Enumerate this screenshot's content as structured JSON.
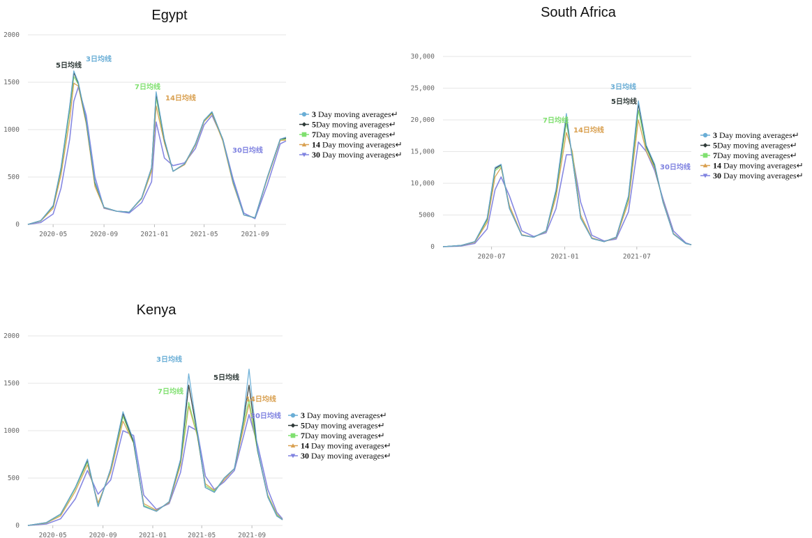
{
  "legend_labels": [
    "Day moving averages",
    "Day moving averages",
    "Day moving averages",
    "Day moving averages",
    "Day moving averages"
  ],
  "windows": [
    "3",
    "5",
    "7",
    "14",
    "30"
  ],
  "colors": {
    "ma3": "#6aaed6",
    "ma5": "#2f3a38",
    "ma7": "#80e070",
    "ma14": "#d9a050",
    "ma30": "#7f82e0",
    "grid": "#e6e6e6"
  },
  "chart_data": [
    {
      "type": "line",
      "title": "Egypt",
      "x_ticks": [
        "2020-05",
        "2020-09",
        "2021-01",
        "2021-05",
        "2021-09"
      ],
      "x_range": [
        "2020-03-01",
        "2021-11-15"
      ],
      "ylim": [
        0,
        2000
      ],
      "y_ticks": [
        "0",
        "500",
        "1000",
        "1500",
        "2000"
      ],
      "grid": "horizontal",
      "legend": "right",
      "x": [
        "2020-03-01",
        "2020-04-01",
        "2020-05-01",
        "2020-05-20",
        "2020-06-10",
        "2020-06-20",
        "2020-07-01",
        "2020-07-20",
        "2020-08-10",
        "2020-09-01",
        "2020-10-01",
        "2020-11-01",
        "2020-12-01",
        "2020-12-25",
        "2021-01-05",
        "2021-01-25",
        "2021-02-15",
        "2021-03-15",
        "2021-04-10",
        "2021-05-01",
        "2021-05-20",
        "2021-06-15",
        "2021-07-10",
        "2021-08-05",
        "2021-09-01",
        "2021-10-01",
        "2021-11-01",
        "2021-11-15"
      ],
      "series": [
        {
          "name": "3",
          "values": [
            0,
            40,
            200,
            600,
            1250,
            1620,
            1500,
            1100,
            450,
            180,
            140,
            130,
            280,
            600,
            1400,
            900,
            560,
            640,
            850,
            1100,
            1190,
            900,
            450,
            100,
            70,
            500,
            900,
            920
          ]
        },
        {
          "name": "5",
          "values": [
            0,
            40,
            195,
            590,
            1240,
            1600,
            1490,
            1090,
            440,
            180,
            140,
            130,
            280,
            600,
            1380,
            890,
            560,
            640,
            850,
            1100,
            1185,
            900,
            450,
            100,
            70,
            500,
            900,
            910
          ]
        },
        {
          "name": "7",
          "values": [
            0,
            38,
            190,
            570,
            1200,
            1560,
            1480,
            1080,
            430,
            180,
            140,
            130,
            275,
            590,
            1340,
            880,
            560,
            640,
            845,
            1095,
            1180,
            895,
            445,
            100,
            70,
            495,
            895,
            900
          ]
        },
        {
          "name": "14",
          "values": [
            0,
            35,
            170,
            520,
            1100,
            1490,
            1460,
            1060,
            400,
            175,
            140,
            130,
            270,
            560,
            1250,
            860,
            560,
            630,
            835,
            1085,
            1170,
            880,
            430,
            100,
            70,
            485,
            885,
            890
          ]
        },
        {
          "name": "30",
          "values": [
            0,
            20,
            110,
            380,
            900,
            1300,
            1450,
            1150,
            500,
            170,
            140,
            120,
            230,
            450,
            1080,
            700,
            620,
            650,
            800,
            1050,
            1150,
            900,
            480,
            120,
            60,
            420,
            850,
            880
          ]
        }
      ],
      "annotations": [
        {
          "text": "5日均线",
          "series": "5"
        },
        {
          "text": "3日均线",
          "series": "3"
        },
        {
          "text": "7日均线",
          "series": "7"
        },
        {
          "text": "14日均线",
          "series": "14"
        },
        {
          "text": "30日均线",
          "series": "30"
        }
      ]
    },
    {
      "type": "line",
      "title": "South Africa",
      "x_ticks": [
        "2020-07",
        "2021-01",
        "2021-07"
      ],
      "x_range": [
        "2020-03-01",
        "2021-11-15"
      ],
      "ylim": [
        0,
        30000
      ],
      "y_ticks": [
        "0",
        "5000",
        "10,000",
        "15,000",
        "20,000",
        "25,000",
        "30,000"
      ],
      "grid": "horizontal",
      "legend": "right",
      "x": [
        "2020-03-01",
        "2020-04-15",
        "2020-05-20",
        "2020-06-20",
        "2020-07-10",
        "2020-07-25",
        "2020-08-15",
        "2020-09-15",
        "2020-10-15",
        "2020-11-15",
        "2020-12-10",
        "2021-01-05",
        "2021-01-20",
        "2021-02-10",
        "2021-03-10",
        "2021-04-10",
        "2021-05-10",
        "2021-06-10",
        "2021-07-05",
        "2021-07-25",
        "2021-08-15",
        "2021-09-05",
        "2021-10-01",
        "2021-11-01",
        "2021-11-15"
      ],
      "series": [
        {
          "name": "3",
          "values": [
            0,
            200,
            800,
            4500,
            12500,
            13000,
            6000,
            1800,
            1500,
            2500,
            9000,
            21000,
            14000,
            4500,
            1300,
            800,
            1500,
            8000,
            23000,
            16000,
            13000,
            7000,
            2000,
            500,
            300
          ]
        },
        {
          "name": "5",
          "values": [
            0,
            200,
            800,
            4400,
            12300,
            12900,
            6000,
            1800,
            1500,
            2500,
            8800,
            20500,
            14000,
            4500,
            1300,
            800,
            1500,
            7900,
            22500,
            15800,
            12800,
            7000,
            2000,
            500,
            300
          ]
        },
        {
          "name": "7",
          "values": [
            0,
            190,
            780,
            4200,
            12000,
            12700,
            6100,
            1800,
            1500,
            2450,
            8500,
            19500,
            14500,
            4600,
            1300,
            800,
            1500,
            7600,
            21500,
            15500,
            12600,
            7000,
            2000,
            500,
            300
          ]
        },
        {
          "name": "14",
          "values": [
            0,
            170,
            700,
            3800,
            11000,
            12500,
            6500,
            1900,
            1500,
            2400,
            7800,
            18000,
            15000,
            5000,
            1400,
            800,
            1400,
            7000,
            20000,
            15000,
            12400,
            7200,
            2100,
            500,
            300
          ]
        },
        {
          "name": "30",
          "values": [
            0,
            100,
            500,
            2800,
            9000,
            11000,
            8000,
            2500,
            1600,
            2200,
            6000,
            14500,
            14500,
            7000,
            1800,
            900,
            1200,
            5500,
            16500,
            15000,
            12000,
            7500,
            2500,
            600,
            300
          ]
        }
      ],
      "annotations": [
        {
          "text": "3日均线",
          "series": "3"
        },
        {
          "text": "5日均线",
          "series": "5"
        },
        {
          "text": "7日均线",
          "series": "7"
        },
        {
          "text": "14日均线",
          "series": "14"
        },
        {
          "text": "30日均线",
          "series": "30"
        }
      ]
    },
    {
      "type": "line",
      "title": "Kenya",
      "x_ticks": [
        "2020-05",
        "2020-09",
        "2021-01",
        "2021-05",
        "2021-09"
      ],
      "x_range": [
        "2020-03-01",
        "2021-11-15"
      ],
      "ylim": [
        0,
        2000
      ],
      "y_ticks": [
        "0",
        "500",
        "1000",
        "1500",
        "2000"
      ],
      "grid": "horizontal",
      "legend": "right",
      "x": [
        "2020-03-01",
        "2020-04-15",
        "2020-05-20",
        "2020-06-25",
        "2020-07-25",
        "2020-08-20",
        "2020-09-20",
        "2020-10-20",
        "2020-11-15",
        "2020-12-10",
        "2021-01-10",
        "2021-02-10",
        "2021-03-10",
        "2021-03-30",
        "2021-04-20",
        "2021-05-10",
        "2021-06-01",
        "2021-06-25",
        "2021-07-20",
        "2021-08-10",
        "2021-08-25",
        "2021-09-15",
        "2021-10-10",
        "2021-11-01",
        "2021-11-15"
      ],
      "series": [
        {
          "name": "3",
          "values": [
            0,
            30,
            120,
            400,
            700,
            200,
            600,
            1200,
            900,
            200,
            150,
            250,
            700,
            1600,
            1000,
            400,
            350,
            500,
            600,
            1100,
            1650,
            800,
            300,
            100,
            60
          ]
        },
        {
          "name": "5",
          "values": [
            0,
            30,
            120,
            400,
            690,
            200,
            600,
            1180,
            880,
            200,
            150,
            250,
            690,
            1480,
            980,
            400,
            350,
            500,
            600,
            1080,
            1480,
            790,
            300,
            100,
            60
          ]
        },
        {
          "name": "7",
          "values": [
            0,
            28,
            115,
            390,
            670,
            210,
            590,
            1150,
            870,
            210,
            150,
            250,
            670,
            1300,
            960,
            420,
            360,
            500,
            600,
            1050,
            1330,
            780,
            310,
            110,
            60
          ]
        },
        {
          "name": "14",
          "values": [
            0,
            25,
            100,
            360,
            640,
            240,
            560,
            1100,
            870,
            230,
            160,
            240,
            640,
            1260,
            950,
            440,
            370,
            480,
            600,
            1000,
            1280,
            790,
            320,
            120,
            60
          ]
        },
        {
          "name": "30",
          "values": [
            0,
            15,
            70,
            280,
            580,
            330,
            480,
            1000,
            950,
            320,
            170,
            230,
            560,
            1050,
            1000,
            520,
            380,
            460,
            580,
            920,
            1170,
            850,
            380,
            140,
            70
          ]
        }
      ],
      "annotations": [
        {
          "text": "3日均线",
          "series": "3"
        },
        {
          "text": "5日均线",
          "series": "5"
        },
        {
          "text": "7日均线",
          "series": "7"
        },
        {
          "text": "14日均线",
          "series": "14"
        },
        {
          "text": "30日均线",
          "series": "30"
        }
      ]
    }
  ]
}
